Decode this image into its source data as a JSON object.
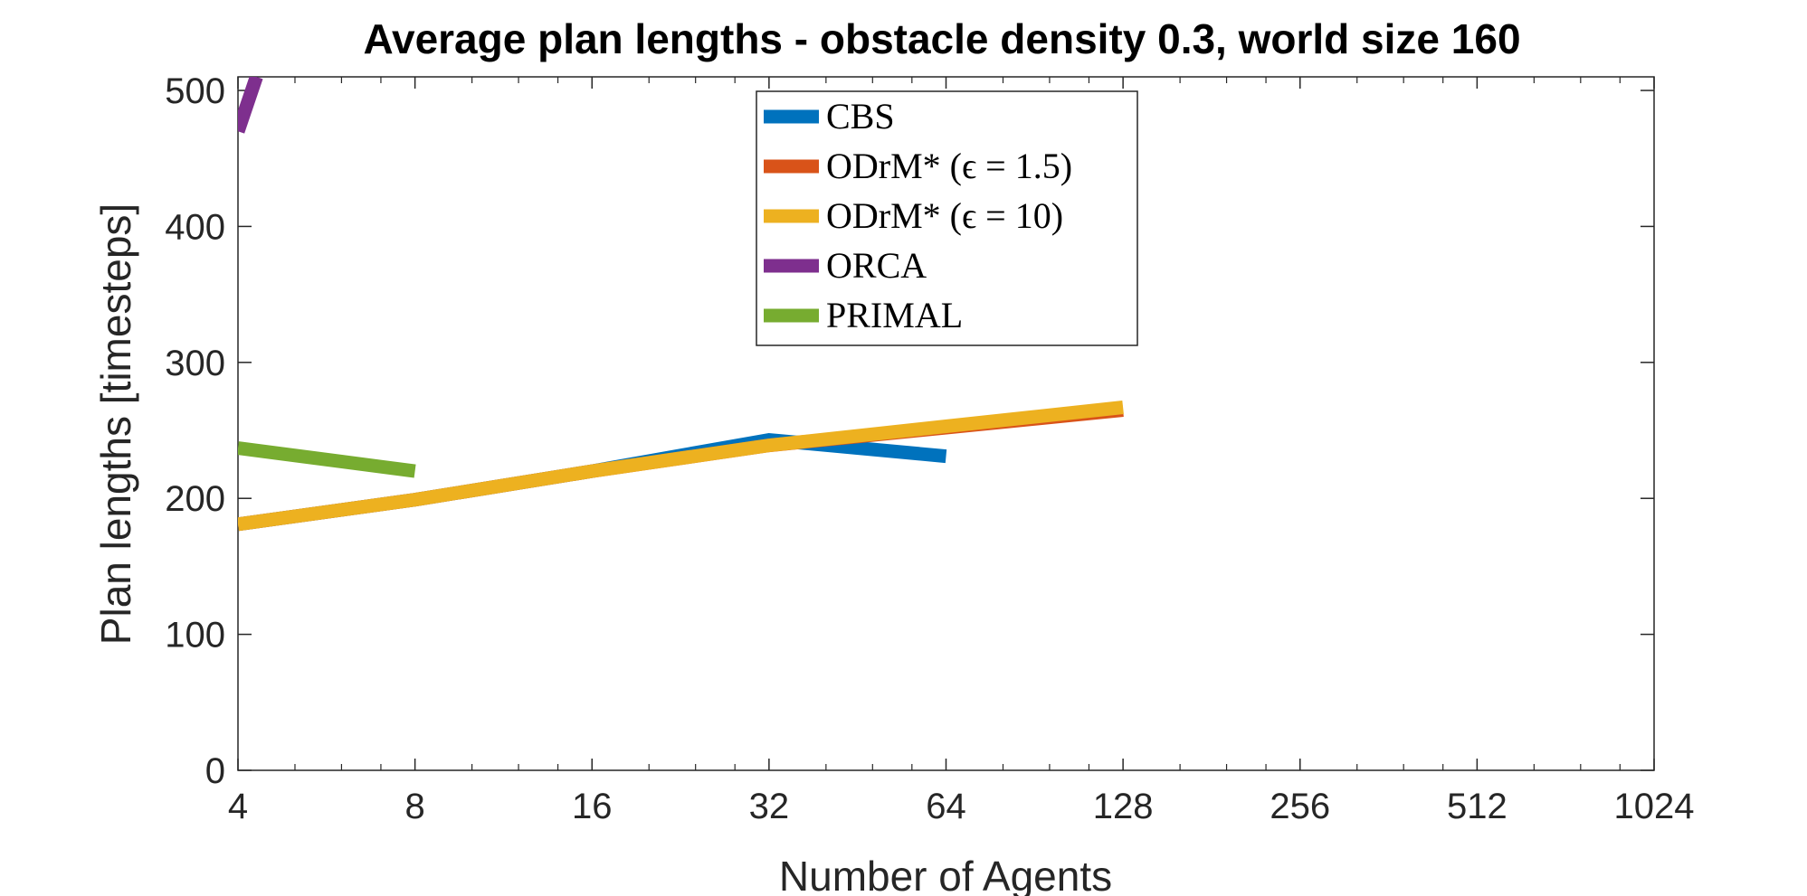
{
  "chart_data": {
    "type": "line",
    "title": "Average plan lengths - obstacle density 0.3, world size 160",
    "xlabel": "Number of Agents",
    "ylabel": "Plan lengths [timesteps]",
    "xscale": "log2",
    "xlim": [
      4,
      1024
    ],
    "ylim": [
      0,
      510
    ],
    "xticks": [
      4,
      8,
      16,
      32,
      64,
      128,
      256,
      512,
      1024
    ],
    "xtick_labels": [
      "4",
      "8",
      "16",
      "32",
      "64",
      "128",
      "256",
      "512",
      "1024"
    ],
    "yticks": [
      0,
      100,
      200,
      300,
      400,
      500
    ],
    "ytick_labels": [
      "0",
      "100",
      "200",
      "300",
      "400",
      "500"
    ],
    "grid": false,
    "legend_position": "top-center",
    "series": [
      {
        "name": "CBS",
        "legend_label": "CBS",
        "color": "#0072BD",
        "x": [
          4,
          8,
          16,
          32,
          64
        ],
        "y": [
          181,
          199,
          220,
          243,
          231
        ]
      },
      {
        "name": "ODrM* (ε = 1.5)",
        "legend_label": "ODrM* (ϵ = 1.5)",
        "color": "#D95319",
        "x": [
          4,
          8,
          16,
          32,
          64,
          128
        ],
        "y": [
          181,
          199,
          220,
          239,
          252,
          265
        ]
      },
      {
        "name": "ODrM* (ε = 10)",
        "legend_label": "ODrM* (ϵ = 10)",
        "color": "#EDB120",
        "x": [
          4,
          8,
          16,
          32,
          64,
          128
        ],
        "y": [
          181,
          199,
          220,
          239,
          253,
          267
        ]
      },
      {
        "name": "ORCA",
        "legend_label": "ORCA",
        "color": "#7E2F8E",
        "x": [
          4,
          4.3
        ],
        "y": [
          470,
          510
        ]
      },
      {
        "name": "PRIMAL",
        "legend_label": "PRIMAL",
        "color": "#77AC30",
        "x": [
          4,
          8
        ],
        "y": [
          237,
          220
        ]
      }
    ]
  }
}
